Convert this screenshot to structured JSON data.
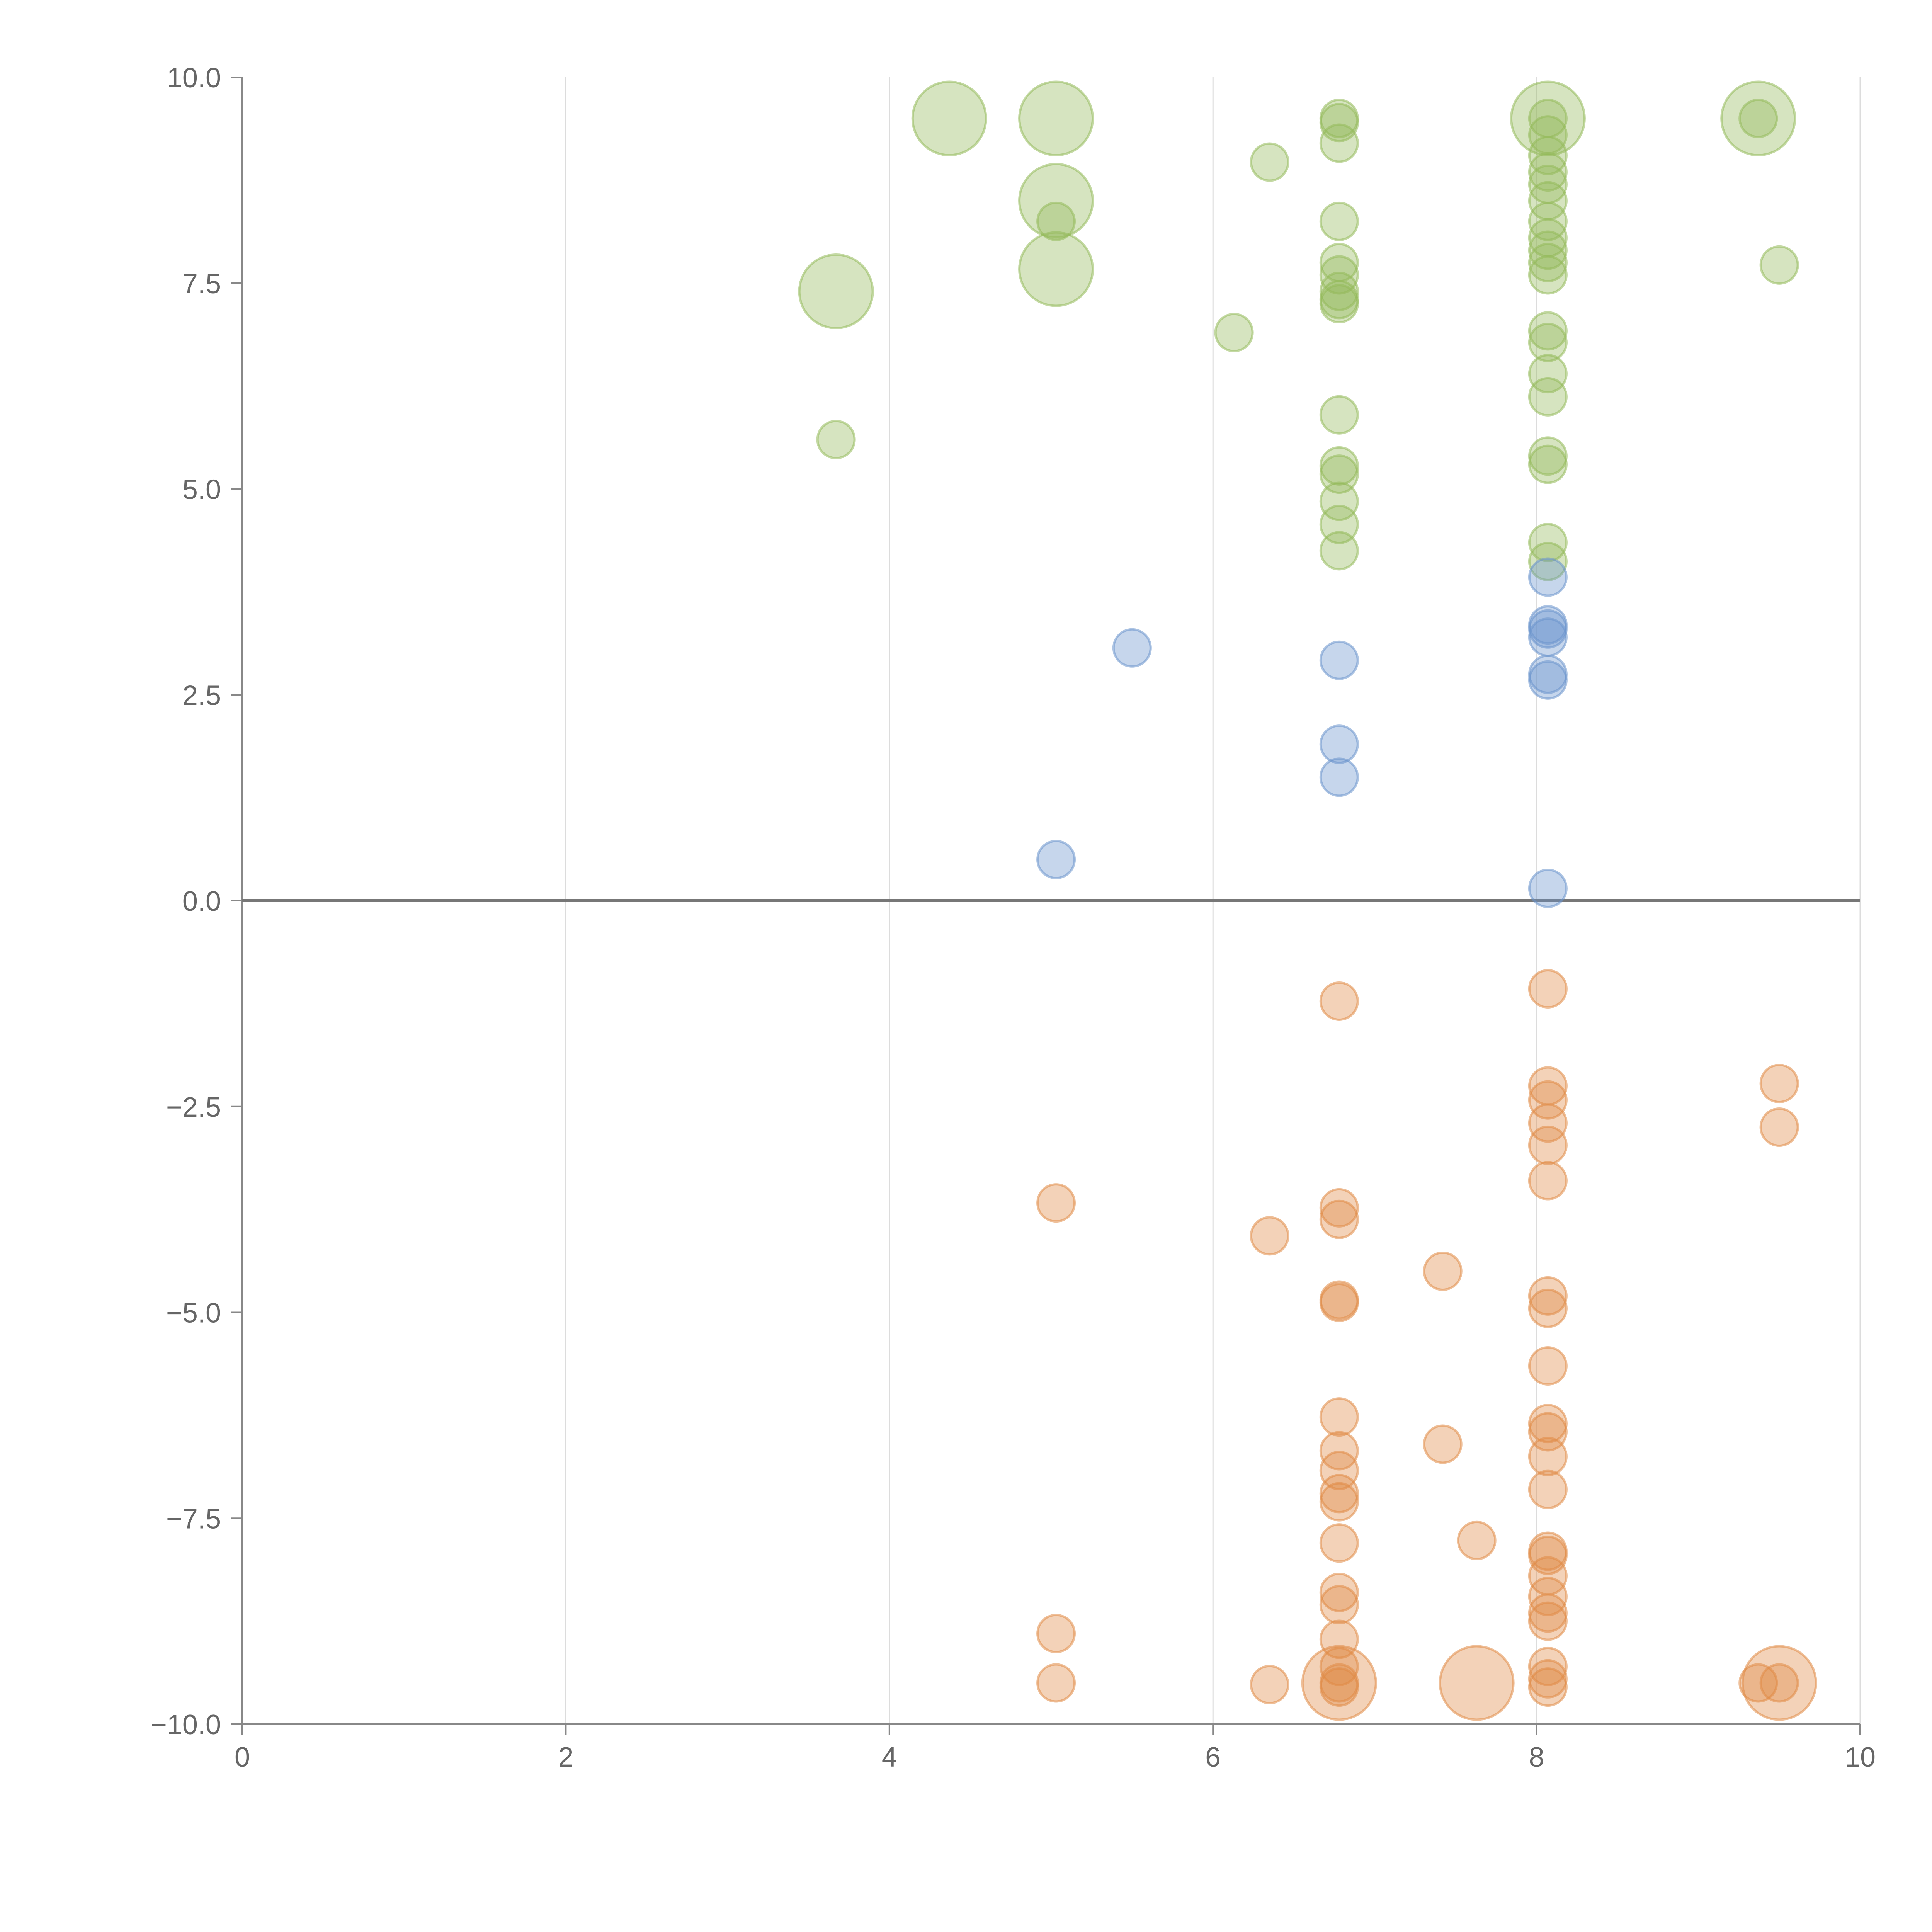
{
  "chart_data": {
    "type": "scatter",
    "title": "",
    "xlabel": "",
    "ylabel": "",
    "xlim": [
      0,
      10
    ],
    "ylim": [
      -10,
      10
    ],
    "x_ticks": [
      "0",
      "2",
      "4",
      "6",
      "8",
      "10"
    ],
    "y_ticks": [
      "10.0",
      "7.5",
      "5.0",
      "2.5",
      "0.0",
      "−2.5",
      "−5.0",
      "−7.5",
      "−10.0"
    ],
    "x_tick_values": [
      0,
      2,
      4,
      6,
      8,
      10
    ],
    "y_tick_values": [
      10,
      7.5,
      5,
      2.5,
      0,
      -2.5,
      -5,
      -7.5,
      -10
    ],
    "grid": "vertical",
    "reference_line_y": 0,
    "series": [
      {
        "color": "#93b95a",
        "points": [
          [
            4.37,
            9.5,
            2
          ],
          [
            5.03,
            9.5,
            2
          ],
          [
            5.03,
            8.5,
            2
          ],
          [
            5.03,
            7.67,
            2
          ],
          [
            3.67,
            7.4,
            2
          ],
          [
            8.07,
            9.5,
            2
          ],
          [
            9.37,
            9.5,
            2
          ],
          [
            5.03,
            8.25,
            1
          ],
          [
            3.67,
            5.6,
            1
          ],
          [
            6.13,
            6.9,
            1
          ],
          [
            6.35,
            8.97,
            1
          ],
          [
            9.5,
            7.72,
            1
          ],
          [
            6.78,
            9.5,
            1
          ],
          [
            6.78,
            9.45,
            1
          ],
          [
            6.78,
            9.2,
            1
          ],
          [
            6.78,
            8.25,
            1
          ],
          [
            6.78,
            7.75,
            1
          ],
          [
            6.78,
            7.6,
            1
          ],
          [
            6.78,
            7.4,
            1
          ],
          [
            6.78,
            7.3,
            1
          ],
          [
            6.78,
            7.25,
            1
          ],
          [
            6.78,
            5.9,
            1
          ],
          [
            6.78,
            5.28,
            1
          ],
          [
            6.78,
            5.18,
            1
          ],
          [
            6.78,
            4.85,
            1
          ],
          [
            6.78,
            4.57,
            1
          ],
          [
            6.78,
            4.25,
            1
          ],
          [
            8.07,
            9.5,
            1
          ],
          [
            8.07,
            9.3,
            1
          ],
          [
            8.07,
            9.05,
            1
          ],
          [
            8.07,
            8.85,
            1
          ],
          [
            8.07,
            8.7,
            1
          ],
          [
            8.07,
            8.5,
            1
          ],
          [
            8.07,
            8.25,
            1
          ],
          [
            8.07,
            8.05,
            1
          ],
          [
            8.07,
            7.9,
            1
          ],
          [
            8.07,
            7.75,
            1
          ],
          [
            8.07,
            7.6,
            1
          ],
          [
            8.07,
            6.92,
            1
          ],
          [
            8.07,
            6.78,
            1
          ],
          [
            8.07,
            6.4,
            1
          ],
          [
            8.07,
            6.12,
            1
          ],
          [
            8.07,
            5.4,
            1
          ],
          [
            8.07,
            5.3,
            1
          ],
          [
            8.07,
            4.35,
            1
          ],
          [
            8.07,
            4.12,
            1
          ],
          [
            9.37,
            9.5,
            1
          ]
        ]
      },
      {
        "color": "#6a93cc",
        "points": [
          [
            5.5,
            3.07,
            1
          ],
          [
            5.03,
            0.5,
            1
          ],
          [
            6.78,
            2.92,
            1
          ],
          [
            6.78,
            1.9,
            1
          ],
          [
            6.78,
            1.5,
            1
          ],
          [
            8.07,
            3.93,
            1
          ],
          [
            8.07,
            3.35,
            1
          ],
          [
            8.07,
            3.3,
            1
          ],
          [
            8.07,
            3.2,
            1
          ],
          [
            8.07,
            2.75,
            1
          ],
          [
            8.07,
            2.68,
            1
          ],
          [
            8.07,
            0.15,
            1
          ]
        ]
      },
      {
        "color": "#e08a45",
        "points": [
          [
            6.78,
            -9.5,
            2
          ],
          [
            7.63,
            -9.5,
            2
          ],
          [
            9.5,
            -9.5,
            2
          ],
          [
            6.78,
            -1.22,
            1
          ],
          [
            8.07,
            -1.07,
            1
          ],
          [
            8.07,
            -2.25,
            1
          ],
          [
            8.07,
            -2.42,
            1
          ],
          [
            8.07,
            -2.7,
            1
          ],
          [
            8.07,
            -2.97,
            1
          ],
          [
            8.07,
            -3.4,
            1
          ],
          [
            9.5,
            -2.22,
            1
          ],
          [
            9.5,
            -2.75,
            1
          ],
          [
            5.03,
            -3.67,
            1
          ],
          [
            6.35,
            -4.07,
            1
          ],
          [
            6.78,
            -3.73,
            1
          ],
          [
            6.78,
            -3.87,
            1
          ],
          [
            7.42,
            -4.5,
            1
          ],
          [
            6.78,
            -4.85,
            1
          ],
          [
            6.78,
            -4.88,
            1
          ],
          [
            8.07,
            -4.8,
            1
          ],
          [
            8.07,
            -4.95,
            1
          ],
          [
            8.07,
            -5.65,
            1
          ],
          [
            6.78,
            -6.27,
            1
          ],
          [
            6.78,
            -6.68,
            1
          ],
          [
            6.78,
            -6.92,
            1
          ],
          [
            6.78,
            -7.2,
            1
          ],
          [
            6.78,
            -7.3,
            1
          ],
          [
            7.42,
            -6.6,
            1
          ],
          [
            8.07,
            -6.35,
            1
          ],
          [
            8.07,
            -6.45,
            1
          ],
          [
            8.07,
            -6.75,
            1
          ],
          [
            8.07,
            -7.15,
            1
          ],
          [
            6.78,
            -7.8,
            1
          ],
          [
            7.63,
            -7.77,
            1
          ],
          [
            6.78,
            -8.4,
            1
          ],
          [
            6.78,
            -8.55,
            1
          ],
          [
            5.03,
            -8.9,
            1
          ],
          [
            6.78,
            -8.97,
            1
          ],
          [
            8.07,
            -7.9,
            1
          ],
          [
            8.07,
            -7.95,
            1
          ],
          [
            8.07,
            -8.2,
            1
          ],
          [
            8.07,
            -8.45,
            1
          ],
          [
            8.07,
            -8.65,
            1
          ],
          [
            8.07,
            -8.75,
            1
          ],
          [
            5.03,
            -9.5,
            1
          ],
          [
            6.35,
            -9.52,
            1
          ],
          [
            6.78,
            -9.3,
            1
          ],
          [
            6.78,
            -9.5,
            1
          ],
          [
            6.78,
            -9.55,
            1
          ],
          [
            8.07,
            -9.3,
            1
          ],
          [
            8.07,
            -9.45,
            1
          ],
          [
            8.07,
            -9.55,
            1
          ],
          [
            9.37,
            -9.5,
            1
          ],
          [
            9.5,
            -9.5,
            1
          ]
        ]
      }
    ]
  }
}
